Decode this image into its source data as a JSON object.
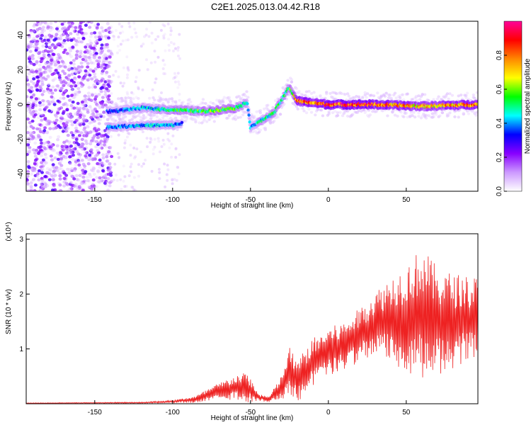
{
  "title": "C2E1.2025.013.04.42.R18",
  "chart_data": [
    {
      "type": "heatmap",
      "xlabel": "Height of straight line (km)",
      "ylabel": "Frequency (Hz)",
      "xlim": [
        -194,
        96
      ],
      "ylim": [
        -50,
        48
      ],
      "xticks": [
        -150,
        -100,
        -50,
        0,
        50
      ],
      "yticks": [
        -40,
        -20,
        0,
        20,
        40
      ],
      "colorbar": {
        "label": "Normalized spectral amplitude",
        "range": [
          0,
          1
        ],
        "ticks": [
          "0.0",
          "0.2",
          "0.4",
          "0.6",
          "0.8"
        ],
        "colors": [
          "#ffffff",
          "#cc99ff",
          "#8800ff",
          "#0000ff",
          "#00ffff",
          "#00ff00",
          "#ffff00",
          "#ff8800",
          "#ff0000",
          "#ff0099"
        ]
      },
      "ridge": [
        {
          "x": -140,
          "f": -4,
          "amp": 0.35
        },
        {
          "x": -120,
          "f": -2,
          "amp": 0.45
        },
        {
          "x": -100,
          "f": -3,
          "amp": 0.55
        },
        {
          "x": -80,
          "f": -4,
          "amp": 0.6
        },
        {
          "x": -60,
          "f": -2,
          "amp": 0.6
        },
        {
          "x": -52,
          "f": 1,
          "amp": 0.45
        },
        {
          "x": -50,
          "f": -13,
          "amp": 0.45
        },
        {
          "x": -35,
          "f": -5,
          "amp": 0.55
        },
        {
          "x": -25,
          "f": 10,
          "amp": 0.55
        },
        {
          "x": -20,
          "f": 2,
          "amp": 0.85
        },
        {
          "x": 0,
          "f": 0,
          "amp": 0.9
        },
        {
          "x": 30,
          "f": 0,
          "amp": 0.9
        },
        {
          "x": 60,
          "f": -1,
          "amp": 0.75
        },
        {
          "x": 95,
          "f": 0,
          "amp": 0.85
        }
      ],
      "lower_ridge": [
        {
          "x": -140,
          "f": -13,
          "amp": 0.4
        },
        {
          "x": -120,
          "f": -12,
          "amp": 0.45
        },
        {
          "x": -100,
          "f": -12,
          "amp": 0.45
        },
        {
          "x": -95,
          "f": -11,
          "amp": 0.4
        }
      ]
    },
    {
      "type": "line",
      "xlabel": "Height of straight line (km)",
      "ylabel": "SNR (10 * v/v)",
      "multiplier": "(x10⁴)",
      "xlim": [
        -194,
        96
      ],
      "ylim": [
        0,
        3.1
      ],
      "xticks": [
        -150,
        -100,
        -50,
        0,
        50
      ],
      "yticks": [
        1,
        2,
        3
      ],
      "color": "#ee2222",
      "envelope": [
        {
          "x": -194,
          "mean": 0.01,
          "amp": 0.005
        },
        {
          "x": -120,
          "mean": 0.02,
          "amp": 0.01
        },
        {
          "x": -100,
          "mean": 0.04,
          "amp": 0.02
        },
        {
          "x": -85,
          "mean": 0.08,
          "amp": 0.06
        },
        {
          "x": -75,
          "mean": 0.18,
          "amp": 0.12
        },
        {
          "x": -60,
          "mean": 0.3,
          "amp": 0.2
        },
        {
          "x": -52,
          "mean": 0.3,
          "amp": 0.25
        },
        {
          "x": -45,
          "mean": 0.12,
          "amp": 0.06
        },
        {
          "x": -38,
          "mean": 0.08,
          "amp": 0.05
        },
        {
          "x": -30,
          "mean": 0.3,
          "amp": 0.2
        },
        {
          "x": -25,
          "mean": 0.6,
          "amp": 0.4
        },
        {
          "x": -20,
          "mean": 0.4,
          "amp": 0.35
        },
        {
          "x": -10,
          "mean": 0.75,
          "amp": 0.4
        },
        {
          "x": 0,
          "mean": 0.95,
          "amp": 0.4
        },
        {
          "x": 10,
          "mean": 1.05,
          "amp": 0.4
        },
        {
          "x": 20,
          "mean": 1.25,
          "amp": 0.45
        },
        {
          "x": 30,
          "mean": 1.45,
          "amp": 0.55
        },
        {
          "x": 40,
          "mean": 1.55,
          "amp": 0.7
        },
        {
          "x": 50,
          "mean": 1.55,
          "amp": 0.9
        },
        {
          "x": 60,
          "mean": 1.65,
          "amp": 1.1
        },
        {
          "x": 70,
          "mean": 1.5,
          "amp": 0.9
        },
        {
          "x": 80,
          "mean": 1.5,
          "amp": 0.8
        },
        {
          "x": 96,
          "mean": 1.55,
          "amp": 0.7
        }
      ]
    }
  ]
}
